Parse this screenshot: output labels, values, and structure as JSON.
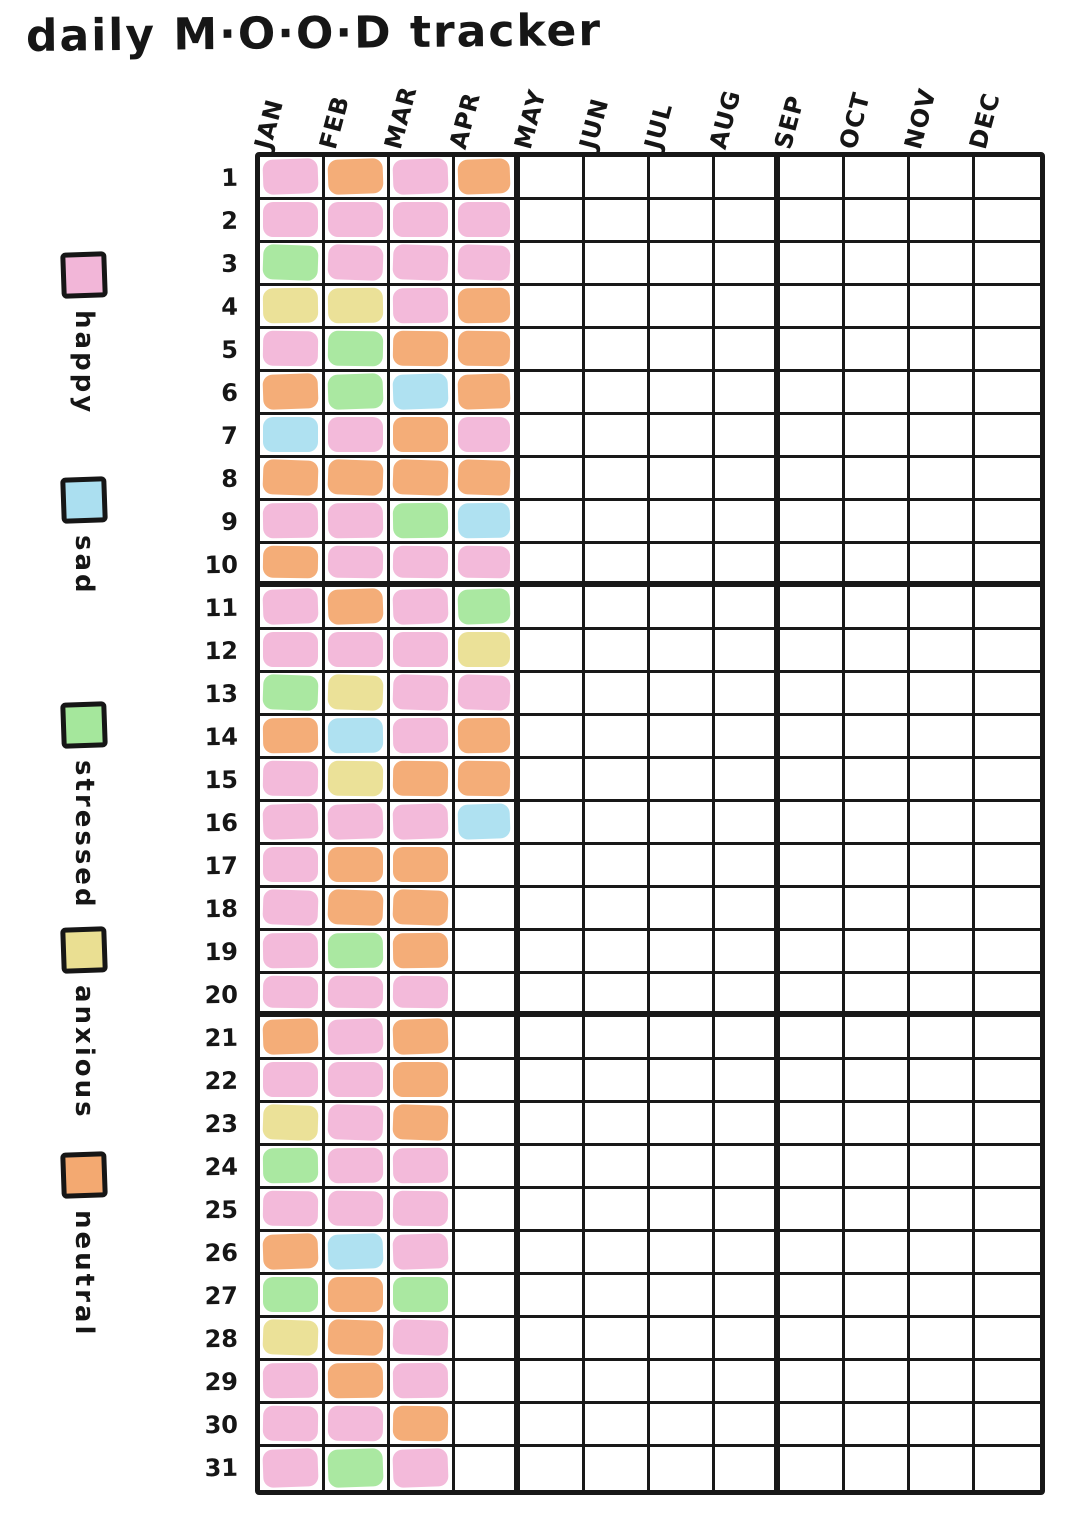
{
  "title": "daily M·O·O·D tracker",
  "chart_data": {
    "type": "heatmap",
    "title": "daily M·O·O·D tracker",
    "x_categories": [
      "JAN",
      "FEB",
      "MAR",
      "APR",
      "MAY",
      "JUN",
      "JUL",
      "AUG",
      "SEP",
      "OCT",
      "NOV",
      "DEC"
    ],
    "y_categories": [
      1,
      2,
      3,
      4,
      5,
      6,
      7,
      8,
      9,
      10,
      11,
      12,
      13,
      14,
      15,
      16,
      17,
      18,
      19,
      20,
      21,
      22,
      23,
      24,
      25,
      26,
      27,
      28,
      29,
      30,
      31
    ],
    "legend": [
      {
        "key": "happy",
        "label": "happy",
        "color": "#f2b6d8"
      },
      {
        "key": "sad",
        "label": "sad",
        "color": "#abdff0"
      },
      {
        "key": "stressed",
        "label": "stressed",
        "color": "#a5e79c"
      },
      {
        "key": "anxious",
        "label": "anxious",
        "color": "#eadf92"
      },
      {
        "key": "neutral",
        "label": "neutral",
        "color": "#f3a971"
      }
    ],
    "grid_line_color": "#181818",
    "cells": {
      "JAN": [
        "happy",
        "happy",
        "stressed",
        "anxious",
        "happy",
        "neutral",
        "sad",
        "neutral",
        "happy",
        "neutral",
        "happy",
        "happy",
        "stressed",
        "neutral",
        "happy",
        "happy",
        "happy",
        "happy",
        "happy",
        "happy",
        "neutral",
        "happy",
        "anxious",
        "stressed",
        "happy",
        "neutral",
        "stressed",
        "anxious",
        "happy",
        "happy",
        "happy"
      ],
      "FEB": [
        "neutral",
        "happy",
        "happy",
        "anxious",
        "stressed",
        "stressed",
        "happy",
        "neutral",
        "happy",
        "happy",
        "neutral",
        "happy",
        "anxious",
        "sad",
        "anxious",
        "happy",
        "neutral",
        "neutral",
        "stressed",
        "happy",
        "happy",
        "happy",
        "happy",
        "happy",
        "happy",
        "sad",
        "neutral",
        "neutral",
        "neutral",
        "happy",
        "stressed"
      ],
      "MAR": [
        "happy",
        "happy",
        "happy",
        "happy",
        "neutral",
        "sad",
        "neutral",
        "neutral",
        "stressed",
        "happy",
        "happy",
        "happy",
        "happy",
        "happy",
        "neutral",
        "happy",
        "neutral",
        "neutral",
        "neutral",
        "happy",
        "neutral",
        "neutral",
        "neutral",
        "happy",
        "happy",
        "happy",
        "stressed",
        "happy",
        "happy",
        "neutral",
        "happy"
      ],
      "APR": [
        "neutral",
        "happy",
        "happy",
        "neutral",
        "neutral",
        "neutral",
        "happy",
        "neutral",
        "sad",
        "happy",
        "stressed",
        "anxious",
        "happy",
        "neutral",
        "neutral",
        "sad"
      ]
    }
  }
}
